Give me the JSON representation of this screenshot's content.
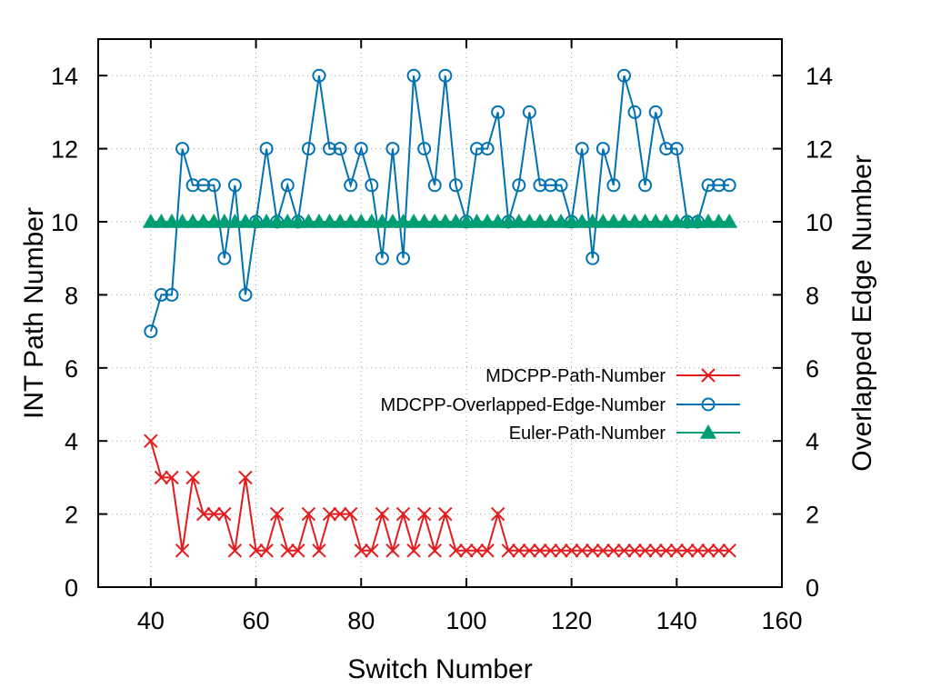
{
  "chart_data": {
    "type": "line",
    "title": "",
    "xlabel": "Switch Number",
    "ylabel": "INT Path Number",
    "y2label": "Overlapped Edge Number",
    "xlim": [
      30,
      160
    ],
    "ylim": [
      0,
      15
    ],
    "y2lim": [
      0,
      15
    ],
    "xticks": [
      40,
      60,
      80,
      100,
      120,
      140,
      160
    ],
    "yticks": [
      0,
      2,
      4,
      6,
      8,
      10,
      12,
      14
    ],
    "y2ticks": [
      0,
      2,
      4,
      6,
      8,
      10,
      12,
      14
    ],
    "grid": true,
    "legend_position": "right-middle",
    "x": [
      40,
      42,
      44,
      46,
      48,
      50,
      52,
      54,
      56,
      58,
      60,
      62,
      64,
      66,
      68,
      70,
      72,
      74,
      76,
      78,
      80,
      82,
      84,
      86,
      88,
      90,
      92,
      94,
      96,
      98,
      100,
      102,
      104,
      106,
      108,
      110,
      112,
      114,
      116,
      118,
      120,
      122,
      124,
      126,
      128,
      130,
      132,
      134,
      136,
      138,
      140,
      142,
      144,
      146,
      148,
      150
    ],
    "series": [
      {
        "name": "MDCPP-Path-Number",
        "color": "#e41a1c",
        "marker": "x",
        "axis": "left",
        "values": [
          4,
          3,
          3,
          1,
          3,
          2,
          2,
          2,
          1,
          3,
          1,
          1,
          2,
          1,
          1,
          2,
          1,
          2,
          2,
          2,
          1,
          1,
          2,
          1,
          2,
          1,
          2,
          1,
          2,
          1,
          1,
          1,
          1,
          2,
          1,
          1,
          1,
          1,
          1,
          1,
          1,
          1,
          1,
          1,
          1,
          1,
          1,
          1,
          1,
          1,
          1,
          1,
          1,
          1,
          1,
          1
        ]
      },
      {
        "name": "MDCPP-Overlapped-Edge-Number",
        "color": "#0072b2",
        "marker": "circle",
        "axis": "right",
        "values": [
          7,
          8,
          8,
          12,
          11,
          11,
          11,
          9,
          11,
          8,
          10,
          12,
          10,
          11,
          10,
          12,
          14,
          12,
          12,
          11,
          12,
          11,
          9,
          12,
          9,
          14,
          12,
          11,
          14,
          11,
          10,
          12,
          12,
          13,
          10,
          11,
          13,
          11,
          11,
          11,
          10,
          12,
          9,
          12,
          11,
          14,
          13,
          11,
          13,
          12,
          12,
          10,
          10,
          11,
          11,
          11
        ]
      },
      {
        "name": "Euler-Path-Number",
        "color": "#009e73",
        "marker": "triangle",
        "axis": "left",
        "values": [
          10,
          10,
          10,
          10,
          10,
          10,
          10,
          10,
          10,
          10,
          10,
          10,
          10,
          10,
          10,
          10,
          10,
          10,
          10,
          10,
          10,
          10,
          10,
          10,
          10,
          10,
          10,
          10,
          10,
          10,
          10,
          10,
          10,
          10,
          10,
          10,
          10,
          10,
          10,
          10,
          10,
          10,
          10,
          10,
          10,
          10,
          10,
          10,
          10,
          10,
          10,
          10,
          10,
          10,
          10,
          10
        ]
      }
    ]
  }
}
